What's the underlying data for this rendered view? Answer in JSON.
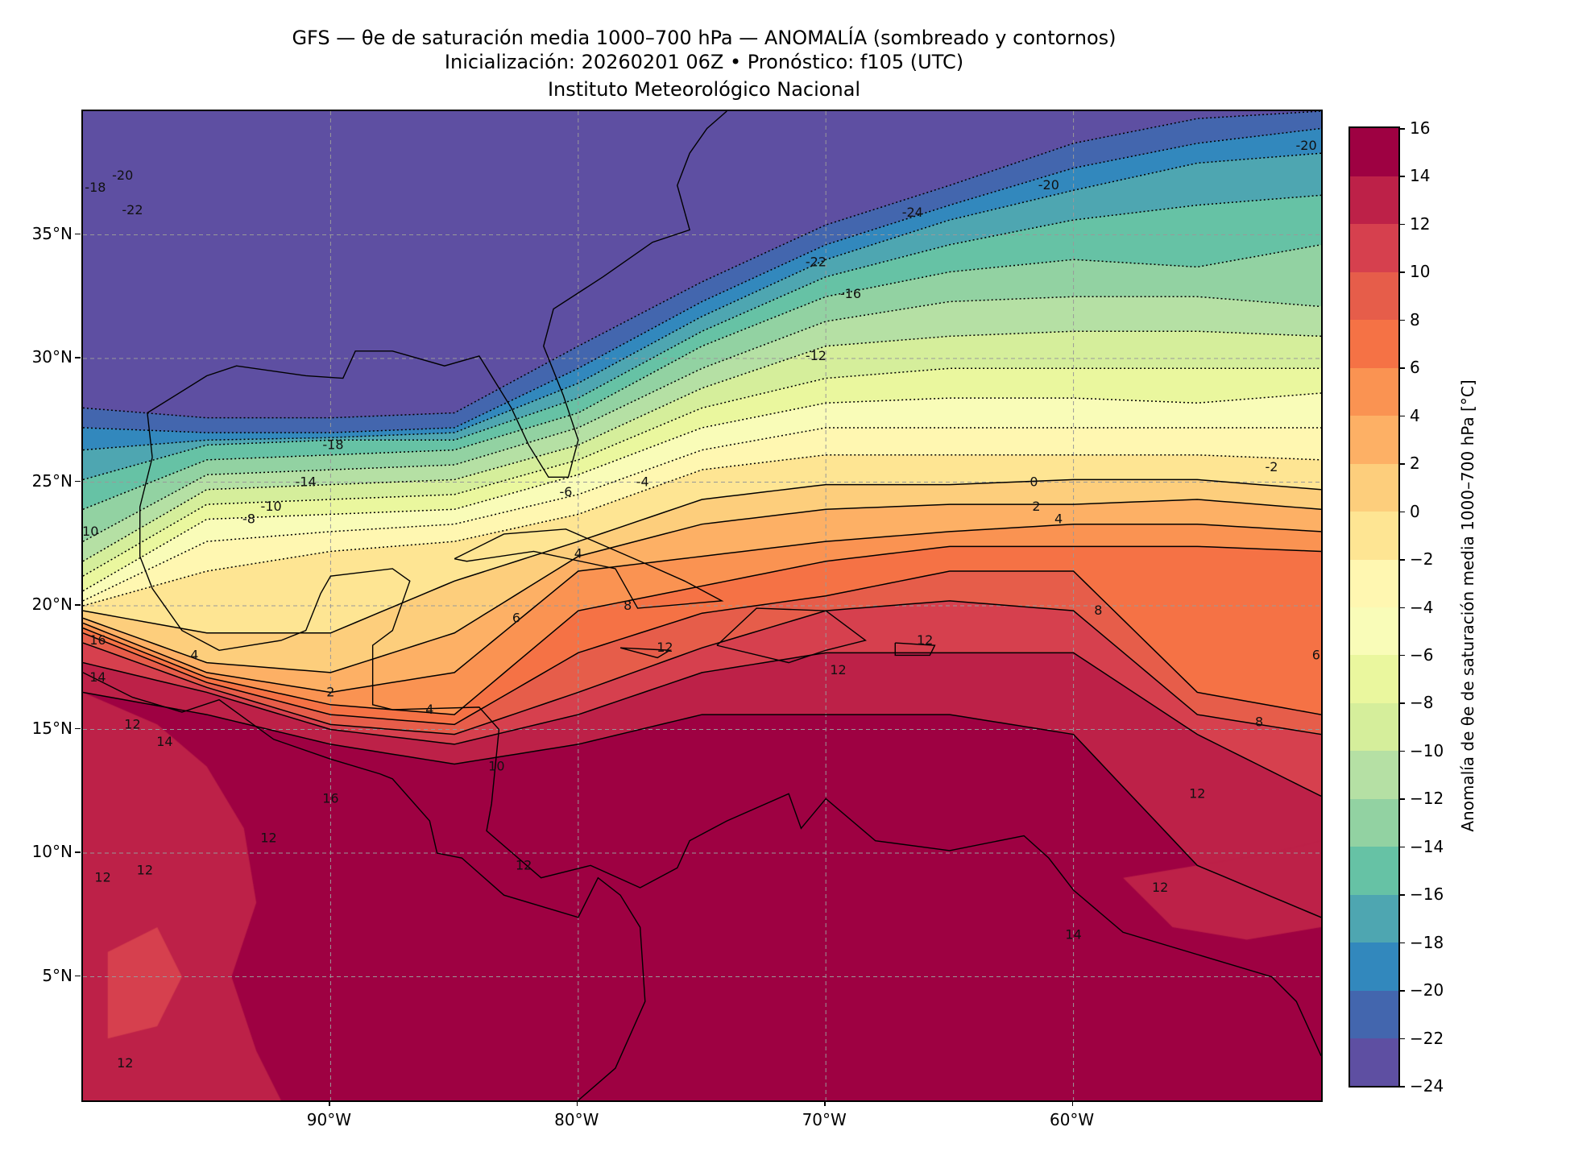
{
  "header": {
    "title_line1": "GFS — θe de saturación media 1000–700 hPa — ANOMALÍA (sombreado y contornos)",
    "title_line2": "Inicialización: 20260201 06Z   •   Pronóstico: f105 (UTC)",
    "title_line3": "Instituto Meteorológico Nacional"
  },
  "chart_data": {
    "type": "heatmap",
    "title": "GFS — θe de saturación media 1000–700 hPa — ANOMALÍA (sombreado y contornos)",
    "xlim": [
      -100,
      -50
    ],
    "ylim": [
      0,
      40
    ],
    "grid": true,
    "x_ticks": [
      {
        "value": -90,
        "label": "90°W"
      },
      {
        "value": -80,
        "label": "80°W"
      },
      {
        "value": -70,
        "label": "70°W"
      },
      {
        "value": -60,
        "label": "60°W"
      }
    ],
    "y_ticks": [
      {
        "value": 35,
        "label": "35°N"
      },
      {
        "value": 30,
        "label": "30°N"
      },
      {
        "value": 25,
        "label": "25°N"
      },
      {
        "value": 20,
        "label": "20°N"
      },
      {
        "value": 15,
        "label": "15°N"
      },
      {
        "value": 10,
        "label": "10°N"
      },
      {
        "value": 5,
        "label": "5°N"
      }
    ],
    "colorbar": {
      "label": "Anomalía de θe de saturación media 1000–700 hPa [°C]",
      "range": [
        -24,
        16
      ],
      "ticks": [
        "16",
        "14",
        "12",
        "10",
        "8",
        "6",
        "4",
        "2",
        "0",
        "−2",
        "−4",
        "−6",
        "−8",
        "−10",
        "−12",
        "−14",
        "−16",
        "−18",
        "−20",
        "−22",
        "−24"
      ],
      "tick_values": [
        16,
        14,
        12,
        10,
        8,
        6,
        4,
        2,
        0,
        -2,
        -4,
        -6,
        -8,
        -10,
        -12,
        -14,
        -16,
        -18,
        -20,
        -22,
        -24
      ],
      "colors": [
        "#5e4fa2",
        "#4366ae",
        "#3288bd",
        "#4ea6b1",
        "#66c2a5",
        "#92d2a2",
        "#b5e0a4",
        "#d5ee9b",
        "#eaf79e",
        "#f9fcb8",
        "#fff7b1",
        "#fee593",
        "#fdce7c",
        "#fdb065",
        "#fa9352",
        "#f57245",
        "#e65d4a",
        "#d6404e",
        "#bd2148",
        "#9e0142"
      ]
    },
    "boundary_lons": [
      -100,
      -95,
      -90,
      -85,
      -80,
      -75,
      -70,
      -65,
      -60,
      -55,
      -50
    ],
    "contour_boundaries": [
      {
        "level": -22,
        "lats": [
          28.0,
          27.6,
          27.6,
          27.8,
          30.5,
          33.1,
          35.4,
          37.0,
          38.7,
          39.7,
          40.0
        ]
      },
      {
        "level": -20,
        "lats": [
          27.2,
          27.0,
          27.0,
          27.2,
          29.6,
          32.3,
          34.6,
          36.2,
          37.7,
          38.7,
          39.3
        ]
      },
      {
        "level": -18,
        "lats": [
          26.3,
          26.7,
          26.8,
          27.0,
          29.0,
          31.7,
          34.0,
          35.6,
          36.8,
          37.9,
          38.3
        ]
      },
      {
        "level": -16,
        "lats": [
          25.1,
          26.5,
          26.7,
          26.7,
          28.4,
          31.1,
          33.3,
          34.6,
          35.6,
          36.2,
          36.6
        ]
      },
      {
        "level": -14,
        "lats": [
          23.9,
          25.9,
          26.1,
          26.3,
          27.8,
          30.5,
          32.5,
          33.5,
          34.0,
          33.7,
          34.6
        ]
      },
      {
        "level": -12,
        "lats": [
          22.6,
          25.3,
          25.5,
          25.7,
          27.2,
          29.6,
          31.5,
          32.3,
          32.5,
          32.5,
          32.1
        ]
      },
      {
        "level": -10,
        "lats": [
          21.8,
          24.7,
          24.9,
          25.1,
          26.5,
          28.8,
          30.5,
          30.9,
          31.1,
          31.1,
          30.9
        ]
      },
      {
        "level": -8,
        "lats": [
          21.2,
          24.1,
          24.3,
          24.5,
          25.9,
          28.0,
          29.2,
          29.6,
          29.6,
          29.6,
          29.6
        ]
      },
      {
        "level": -6,
        "lats": [
          20.6,
          23.5,
          23.7,
          23.9,
          25.3,
          27.2,
          28.2,
          28.4,
          28.4,
          28.2,
          28.6
        ]
      },
      {
        "level": -4,
        "lats": [
          20.2,
          22.6,
          23.0,
          23.3,
          24.5,
          26.3,
          27.2,
          27.2,
          27.2,
          27.2,
          27.2
        ]
      },
      {
        "level": -2,
        "lats": [
          20.0,
          21.4,
          22.2,
          22.6,
          23.7,
          25.5,
          26.1,
          26.1,
          26.1,
          26.1,
          25.9
        ]
      },
      {
        "level": 0,
        "lats": [
          19.8,
          18.9,
          18.9,
          21.0,
          22.6,
          24.3,
          24.9,
          24.9,
          25.1,
          25.1,
          24.7
        ]
      },
      {
        "level": 2,
        "lats": [
          19.5,
          17.7,
          17.3,
          18.9,
          22.0,
          23.3,
          23.9,
          24.1,
          24.1,
          24.3,
          23.9
        ]
      },
      {
        "level": 4,
        "lats": [
          19.3,
          17.3,
          16.5,
          17.3,
          21.4,
          22.0,
          22.6,
          23.0,
          23.3,
          23.3,
          23.0
        ]
      },
      {
        "level": 6,
        "lats": [
          19.1,
          17.1,
          16.0,
          15.6,
          19.8,
          20.8,
          21.8,
          22.4,
          22.4,
          22.4,
          22.2
        ]
      },
      {
        "level": 8,
        "lats": [
          18.9,
          16.9,
          15.6,
          15.2,
          18.1,
          19.7,
          20.4,
          21.4,
          21.4,
          16.5,
          15.6
        ]
      },
      {
        "level": 10,
        "lats": [
          18.5,
          16.7,
          15.2,
          14.8,
          16.5,
          18.3,
          19.8,
          20.2,
          19.8,
          15.6,
          14.8
        ]
      },
      {
        "level": 12,
        "lats": [
          17.7,
          16.5,
          15.0,
          14.4,
          15.6,
          17.3,
          18.1,
          18.1,
          18.1,
          14.8,
          12.3
        ]
      },
      {
        "level": 14,
        "lats": [
          16.5,
          15.6,
          14.4,
          13.6,
          14.4,
          15.6,
          15.6,
          15.6,
          14.8,
          9.5,
          7.4
        ]
      }
    ],
    "patches": [
      {
        "value_band": 12,
        "polygon": [
          [
            -100,
            16.5
          ],
          [
            -97,
            15.2
          ],
          [
            -95,
            13.5
          ],
          [
            -93.5,
            11
          ],
          [
            -93,
            8
          ],
          [
            -94,
            5
          ],
          [
            -93,
            2
          ],
          [
            -92,
            0
          ],
          [
            -100,
            0
          ]
        ]
      },
      {
        "value_band": 12,
        "polygon": [
          [
            -58,
            9
          ],
          [
            -55,
            9.5
          ],
          [
            -52,
            10
          ],
          [
            -50,
            10.5
          ],
          [
            -50,
            7
          ],
          [
            -53,
            6.5
          ],
          [
            -56,
            7
          ]
        ]
      },
      {
        "value_band": 10,
        "polygon": [
          [
            -99,
            6
          ],
          [
            -97,
            7
          ],
          [
            -96,
            5
          ],
          [
            -97,
            3
          ],
          [
            -99,
            2.5
          ]
        ]
      }
    ],
    "contour_labels": [
      {
        "text": "-24",
        "lon": -66.5,
        "lat": 35.9
      },
      {
        "text": "-20",
        "lon": -61.0,
        "lat": 37.0
      },
      {
        "text": "-20",
        "lon": -50.6,
        "lat": 38.6
      },
      {
        "text": "-22",
        "lon": -70.4,
        "lat": 33.9
      },
      {
        "text": "-16",
        "lon": -69.0,
        "lat": 32.6
      },
      {
        "text": "-12",
        "lon": -70.4,
        "lat": 30.1
      },
      {
        "text": "-18",
        "lon": -89.9,
        "lat": 26.5
      },
      {
        "text": "-14",
        "lon": -91.0,
        "lat": 25.0
      },
      {
        "text": "-10",
        "lon": -92.4,
        "lat": 24.0
      },
      {
        "text": "-8",
        "lon": -93.3,
        "lat": 23.5
      },
      {
        "text": "-6",
        "lon": -80.5,
        "lat": 24.6
      },
      {
        "text": "-4",
        "lon": -77.4,
        "lat": 25.0
      },
      {
        "text": "-2",
        "lon": -52.0,
        "lat": 25.6
      },
      {
        "text": "0",
        "lon": -61.6,
        "lat": 25.0
      },
      {
        "text": "2",
        "lon": -61.5,
        "lat": 24.0
      },
      {
        "text": "4",
        "lon": -60.6,
        "lat": 23.5
      },
      {
        "text": "4",
        "lon": -80.0,
        "lat": 22.1
      },
      {
        "text": "6",
        "lon": -82.5,
        "lat": 19.5
      },
      {
        "text": "8",
        "lon": -78.0,
        "lat": 20.0
      },
      {
        "text": "8",
        "lon": -59.0,
        "lat": 19.8
      },
      {
        "text": "8",
        "lon": -52.5,
        "lat": 15.3
      },
      {
        "text": "6",
        "lon": -50.2,
        "lat": 18.0
      },
      {
        "text": "12",
        "lon": -69.5,
        "lat": 17.4
      },
      {
        "text": "12",
        "lon": -66.0,
        "lat": 18.6
      },
      {
        "text": "12",
        "lon": -76.5,
        "lat": 18.3
      },
      {
        "text": "16",
        "lon": -90.0,
        "lat": 12.2
      },
      {
        "text": "12",
        "lon": -92.5,
        "lat": 10.6
      },
      {
        "text": "12",
        "lon": -98.0,
        "lat": 15.2
      },
      {
        "text": "14",
        "lon": -96.7,
        "lat": 14.5
      },
      {
        "text": "12",
        "lon": -55.0,
        "lat": 12.4
      },
      {
        "text": "12",
        "lon": -56.5,
        "lat": 8.6
      },
      {
        "text": "14",
        "lon": -60.0,
        "lat": 6.7
      },
      {
        "text": "10",
        "lon": -83.3,
        "lat": 13.5
      },
      {
        "text": "12",
        "lon": -82.2,
        "lat": 9.5
      },
      {
        "text": "12",
        "lon": -99.2,
        "lat": 9.0
      },
      {
        "text": "12",
        "lon": -97.5,
        "lat": 9.3
      },
      {
        "text": "4",
        "lon": -86.0,
        "lat": 15.8
      },
      {
        "text": "2",
        "lon": -90.0,
        "lat": 16.5
      },
      {
        "text": "4",
        "lon": -95.5,
        "lat": 18.0
      },
      {
        "text": "10",
        "lon": -99.7,
        "lat": 23.0
      },
      {
        "text": "16",
        "lon": -99.4,
        "lat": 18.6
      },
      {
        "text": "14",
        "lon": -99.4,
        "lat": 17.1
      },
      {
        "text": "-18",
        "lon": -99.5,
        "lat": 36.9
      },
      {
        "text": "-20",
        "lon": -98.4,
        "lat": 37.4
      },
      {
        "text": "-22",
        "lon": -98.0,
        "lat": 36.0
      },
      {
        "text": "12",
        "lon": -98.3,
        "lat": 1.5
      }
    ],
    "coastlines": [
      [
        [
          -97.2,
          26
        ],
        [
          -97.4,
          27.8
        ],
        [
          -95,
          29.3
        ],
        [
          -93.8,
          29.7
        ],
        [
          -91,
          29.3
        ],
        [
          -89.5,
          29.2
        ],
        [
          -89,
          30.3
        ],
        [
          -87.5,
          30.3
        ],
        [
          -85.4,
          29.7
        ],
        [
          -84,
          30.1
        ],
        [
          -82.7,
          28
        ],
        [
          -82,
          26.5
        ],
        [
          -81.2,
          25.2
        ],
        [
          -80.4,
          25.2
        ],
        [
          -80,
          26.7
        ],
        [
          -80.6,
          28.5
        ],
        [
          -81.4,
          30.5
        ],
        [
          -81,
          32
        ],
        [
          -79,
          33.3
        ],
        [
          -77,
          34.7
        ],
        [
          -75.5,
          35.2
        ],
        [
          -76,
          37
        ],
        [
          -75.5,
          38.3
        ],
        [
          -74.8,
          39.3
        ],
        [
          -74,
          40
        ]
      ],
      [
        [
          -97.2,
          26
        ],
        [
          -97.7,
          24
        ],
        [
          -97.7,
          22
        ],
        [
          -97.2,
          20.7
        ],
        [
          -96,
          19
        ],
        [
          -94.5,
          18.2
        ],
        [
          -92,
          18.6
        ],
        [
          -91,
          19
        ],
        [
          -90.4,
          20.5
        ],
        [
          -90,
          21.2
        ],
        [
          -87.5,
          21.5
        ],
        [
          -86.8,
          21
        ],
        [
          -87.5,
          19
        ],
        [
          -88.3,
          18.4
        ],
        [
          -88.3,
          16
        ],
        [
          -87.5,
          15.8
        ],
        [
          -84,
          15.9
        ],
        [
          -83.2,
          15
        ],
        [
          -83.5,
          12
        ],
        [
          -83.7,
          10.9
        ],
        [
          -81.5,
          9
        ],
        [
          -79.5,
          9.5
        ],
        [
          -77.5,
          8.6
        ],
        [
          -76,
          9.4
        ],
        [
          -75.5,
          10.5
        ],
        [
          -74,
          11.3
        ],
        [
          -71.5,
          12.4
        ],
        [
          -71,
          11
        ],
        [
          -70,
          12.2
        ],
        [
          -68,
          10.5
        ],
        [
          -65,
          10.1
        ],
        [
          -62,
          10.7
        ],
        [
          -61,
          9.8
        ],
        [
          -60,
          8.5
        ],
        [
          -58,
          6.8
        ],
        [
          -55,
          5.9
        ],
        [
          -52,
          5
        ],
        [
          -51,
          4
        ],
        [
          -50,
          1.8
        ]
      ],
      [
        [
          -100,
          17.3
        ],
        [
          -98,
          16.3
        ],
        [
          -96,
          15.7
        ],
        [
          -94.5,
          16.2
        ],
        [
          -92.3,
          14.6
        ],
        [
          -90,
          13.8
        ],
        [
          -88,
          13.2
        ],
        [
          -87.5,
          13
        ],
        [
          -86,
          11.3
        ],
        [
          -85.7,
          10
        ],
        [
          -84.7,
          9.8
        ],
        [
          -83,
          8.3
        ],
        [
          -80,
          7.4
        ],
        [
          -79.2,
          9
        ],
        [
          -78.3,
          8.3
        ],
        [
          -77.5,
          7
        ],
        [
          -77.3,
          4
        ],
        [
          -78.5,
          1.3
        ],
        [
          -80,
          0
        ]
      ],
      [
        [
          -85,
          21.9
        ],
        [
          -83,
          22.9
        ],
        [
          -80.5,
          23.1
        ],
        [
          -77.5,
          21.8
        ],
        [
          -75.7,
          21
        ],
        [
          -74.2,
          20.2
        ],
        [
          -77.6,
          19.9
        ],
        [
          -78.5,
          21.5
        ],
        [
          -81.8,
          22.2
        ],
        [
          -84.5,
          21.8
        ],
        [
          -85,
          21.9
        ]
      ],
      [
        [
          -74.4,
          18.4
        ],
        [
          -72.8,
          19.9
        ],
        [
          -70,
          19.8
        ],
        [
          -68.4,
          18.6
        ],
        [
          -70,
          18.2
        ],
        [
          -71.5,
          17.7
        ],
        [
          -74.4,
          18.4
        ]
      ],
      [
        [
          -78.3,
          18.3
        ],
        [
          -76.3,
          18.2
        ],
        [
          -76.8,
          17.9
        ],
        [
          -78.3,
          18.3
        ]
      ],
      [
        [
          -67.2,
          18.5
        ],
        [
          -65.6,
          18.4
        ],
        [
          -65.8,
          18
        ],
        [
          -67.2,
          18
        ],
        [
          -67.2,
          18.5
        ]
      ]
    ]
  }
}
